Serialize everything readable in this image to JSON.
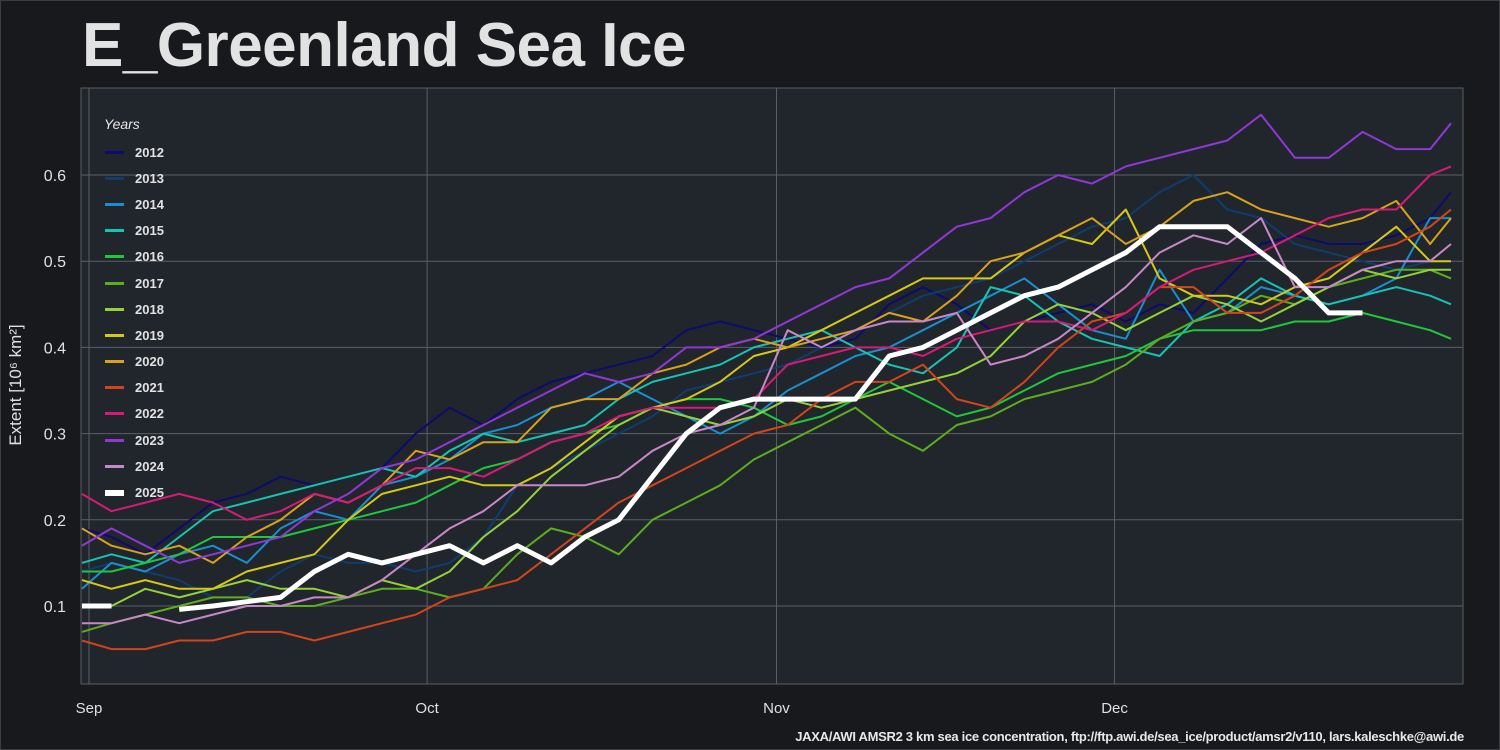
{
  "chart_data": {
    "type": "line",
    "title": "E_Greenland Sea Ice",
    "xlabel": "",
    "ylabel": "Extent [10⁶ km²]",
    "ylim": [
      0.01,
      0.7
    ],
    "xlim_days_from_sep1": [
      -0.7,
      122
    ],
    "grid": true,
    "legend": {
      "title": "Years",
      "placement": "top-left"
    },
    "xticks": [
      {
        "day": 0,
        "label": "Sep"
      },
      {
        "day": 30,
        "label": "Oct"
      },
      {
        "day": 61,
        "label": "Nov"
      },
      {
        "day": 91,
        "label": "Dec"
      }
    ],
    "yticks": [
      {
        "value": 0.1,
        "label": "0.1"
      },
      {
        "value": 0.2,
        "label": "0.2"
      },
      {
        "value": 0.3,
        "label": "0.3"
      },
      {
        "value": 0.4,
        "label": "0.4"
      },
      {
        "value": 0.5,
        "label": "0.5"
      },
      {
        "value": 0.6,
        "label": "0.6"
      }
    ],
    "x_days_from_sep1": [
      -1,
      2,
      5,
      8,
      11,
      14,
      17,
      20,
      23,
      26,
      29,
      32,
      35,
      38,
      41,
      44,
      47,
      50,
      53,
      56,
      59,
      62,
      65,
      68,
      71,
      74,
      77,
      80,
      83,
      86,
      89,
      92,
      95,
      98,
      101,
      104,
      107,
      110,
      113,
      116,
      119,
      121
    ],
    "series": [
      {
        "name": "2012",
        "color": "#0c0c6e",
        "values": [
          0.19,
          0.18,
          0.16,
          0.19,
          0.22,
          0.23,
          0.25,
          0.24,
          0.25,
          0.26,
          0.3,
          0.33,
          0.31,
          0.34,
          0.36,
          0.37,
          0.38,
          0.39,
          0.42,
          0.43,
          0.42,
          0.41,
          0.4,
          0.41,
          0.45,
          0.47,
          0.45,
          0.42,
          0.43,
          0.44,
          0.45,
          0.43,
          0.45,
          0.44,
          0.48,
          0.52,
          0.53,
          0.52,
          0.52,
          0.53,
          0.55,
          0.58
        ]
      },
      {
        "name": "2013",
        "color": "#0f3d6e",
        "values": [
          0.14,
          0.15,
          0.14,
          0.13,
          0.11,
          0.11,
          0.14,
          0.16,
          0.15,
          0.15,
          0.14,
          0.15,
          0.18,
          0.24,
          0.26,
          0.28,
          0.3,
          0.32,
          0.35,
          0.36,
          0.37,
          0.38,
          0.4,
          0.42,
          0.44,
          0.46,
          0.47,
          0.48,
          0.5,
          0.52,
          0.54,
          0.55,
          0.58,
          0.6,
          0.56,
          0.55,
          0.52,
          0.51,
          0.5,
          0.49,
          0.5,
          0.5
        ]
      },
      {
        "name": "2014",
        "color": "#1a8fd0",
        "values": [
          0.12,
          0.15,
          0.14,
          0.16,
          0.17,
          0.15,
          0.19,
          0.21,
          0.2,
          0.24,
          0.25,
          0.27,
          0.3,
          0.31,
          0.33,
          0.34,
          0.36,
          0.34,
          0.32,
          0.3,
          0.32,
          0.35,
          0.37,
          0.39,
          0.4,
          0.42,
          0.44,
          0.46,
          0.48,
          0.45,
          0.42,
          0.41,
          0.49,
          0.43,
          0.44,
          0.47,
          0.46,
          0.45,
          0.46,
          0.48,
          0.55,
          0.55
        ]
      },
      {
        "name": "2015",
        "color": "#17c3b2",
        "values": [
          0.15,
          0.16,
          0.15,
          0.18,
          0.21,
          0.22,
          0.23,
          0.24,
          0.25,
          0.26,
          0.25,
          0.28,
          0.3,
          0.29,
          0.3,
          0.31,
          0.34,
          0.36,
          0.37,
          0.38,
          0.4,
          0.41,
          0.42,
          0.4,
          0.38,
          0.37,
          0.4,
          0.47,
          0.46,
          0.43,
          0.41,
          0.4,
          0.39,
          0.43,
          0.45,
          0.48,
          0.46,
          0.45,
          0.46,
          0.47,
          0.46,
          0.45
        ]
      },
      {
        "name": "2016",
        "color": "#1ec83a",
        "values": [
          0.14,
          0.14,
          0.15,
          0.16,
          0.18,
          0.18,
          0.18,
          0.19,
          0.2,
          0.21,
          0.22,
          0.24,
          0.26,
          0.27,
          0.29,
          0.3,
          0.31,
          0.33,
          0.34,
          0.34,
          0.33,
          0.31,
          0.32,
          0.34,
          0.36,
          0.34,
          0.32,
          0.33,
          0.35,
          0.37,
          0.38,
          0.39,
          0.41,
          0.42,
          0.42,
          0.42,
          0.43,
          0.43,
          0.44,
          0.43,
          0.42,
          0.41
        ]
      },
      {
        "name": "2017",
        "color": "#5cae1c",
        "values": [
          0.07,
          0.08,
          0.09,
          0.1,
          0.11,
          0.11,
          0.1,
          0.1,
          0.11,
          0.12,
          0.12,
          0.11,
          0.12,
          0.16,
          0.19,
          0.18,
          0.16,
          0.2,
          0.22,
          0.24,
          0.27,
          0.29,
          0.31,
          0.33,
          0.3,
          0.28,
          0.31,
          0.32,
          0.34,
          0.35,
          0.36,
          0.38,
          0.41,
          0.43,
          0.44,
          0.46,
          0.45,
          0.47,
          0.48,
          0.49,
          0.49,
          0.48
        ]
      },
      {
        "name": "2018",
        "color": "#94d23a",
        "values": [
          0.1,
          0.1,
          0.12,
          0.11,
          0.12,
          0.13,
          0.12,
          0.12,
          0.11,
          0.13,
          0.12,
          0.14,
          0.18,
          0.21,
          0.25,
          0.28,
          0.31,
          0.33,
          0.32,
          0.31,
          0.32,
          0.34,
          0.33,
          0.34,
          0.35,
          0.36,
          0.37,
          0.39,
          0.43,
          0.45,
          0.44,
          0.42,
          0.44,
          0.46,
          0.45,
          0.43,
          0.45,
          0.47,
          0.49,
          0.48,
          0.49,
          0.49
        ]
      },
      {
        "name": "2019",
        "color": "#d6c916",
        "values": [
          0.13,
          0.12,
          0.13,
          0.12,
          0.12,
          0.14,
          0.15,
          0.16,
          0.2,
          0.23,
          0.24,
          0.25,
          0.24,
          0.24,
          0.26,
          0.29,
          0.32,
          0.33,
          0.34,
          0.36,
          0.39,
          0.4,
          0.42,
          0.44,
          0.46,
          0.48,
          0.48,
          0.48,
          0.51,
          0.53,
          0.52,
          0.56,
          0.48,
          0.46,
          0.46,
          0.45,
          0.47,
          0.48,
          0.51,
          0.54,
          0.5,
          0.5
        ]
      },
      {
        "name": "2020",
        "color": "#d9a21c",
        "values": [
          0.19,
          0.17,
          0.16,
          0.17,
          0.15,
          0.18,
          0.2,
          0.23,
          0.22,
          0.24,
          0.28,
          0.27,
          0.29,
          0.29,
          0.33,
          0.34,
          0.34,
          0.37,
          0.38,
          0.4,
          0.41,
          0.4,
          0.41,
          0.42,
          0.44,
          0.43,
          0.46,
          0.5,
          0.51,
          0.53,
          0.55,
          0.52,
          0.54,
          0.57,
          0.58,
          0.56,
          0.55,
          0.54,
          0.55,
          0.57,
          0.52,
          0.55
        ]
      },
      {
        "name": "2021",
        "color": "#d4441a",
        "values": [
          0.06,
          0.05,
          0.05,
          0.06,
          0.06,
          0.07,
          0.07,
          0.06,
          0.07,
          0.08,
          0.09,
          0.11,
          0.12,
          0.13,
          0.16,
          0.19,
          0.22,
          0.24,
          0.26,
          0.28,
          0.3,
          0.31,
          0.34,
          0.36,
          0.36,
          0.38,
          0.34,
          0.33,
          0.36,
          0.4,
          0.43,
          0.44,
          0.47,
          0.47,
          0.44,
          0.44,
          0.46,
          0.49,
          0.51,
          0.52,
          0.54,
          0.56
        ]
      },
      {
        "name": "2022",
        "color": "#d61a78",
        "values": [
          0.23,
          0.21,
          0.22,
          0.23,
          0.22,
          0.2,
          0.21,
          0.23,
          0.22,
          0.24,
          0.26,
          0.26,
          0.25,
          0.27,
          0.29,
          0.3,
          0.32,
          0.33,
          0.33,
          0.33,
          0.34,
          0.38,
          0.39,
          0.4,
          0.4,
          0.39,
          0.41,
          0.42,
          0.43,
          0.43,
          0.42,
          0.44,
          0.47,
          0.49,
          0.5,
          0.51,
          0.53,
          0.55,
          0.56,
          0.56,
          0.6,
          0.61
        ]
      },
      {
        "name": "2023",
        "color": "#9038d6",
        "values": [
          0.17,
          0.19,
          0.17,
          0.15,
          0.16,
          0.17,
          0.18,
          0.21,
          0.23,
          0.26,
          0.27,
          0.29,
          0.31,
          0.33,
          0.35,
          0.37,
          0.36,
          0.37,
          0.4,
          0.4,
          0.41,
          0.43,
          0.45,
          0.47,
          0.48,
          0.51,
          0.54,
          0.55,
          0.58,
          0.6,
          0.59,
          0.61,
          0.62,
          0.63,
          0.64,
          0.67,
          0.62,
          0.62,
          0.65,
          0.63,
          0.63,
          0.66
        ]
      },
      {
        "name": "2024",
        "color": "#c888c8",
        "values": [
          0.08,
          0.08,
          0.09,
          0.08,
          0.09,
          0.1,
          0.1,
          0.11,
          0.11,
          0.13,
          0.16,
          0.19,
          0.21,
          0.24,
          0.24,
          0.24,
          0.25,
          0.28,
          0.3,
          0.31,
          0.33,
          0.42,
          0.4,
          0.42,
          0.43,
          0.43,
          0.44,
          0.38,
          0.39,
          0.41,
          0.44,
          0.47,
          0.51,
          0.53,
          0.52,
          0.55,
          0.47,
          0.47,
          0.49,
          0.5,
          0.5,
          0.52
        ]
      },
      {
        "name": "2025",
        "color": "#ffffff",
        "values": [
          0.1,
          0.1,
          null,
          0.096,
          0.1,
          0.105,
          0.11,
          0.14,
          0.16,
          0.15,
          0.16,
          0.17,
          0.15,
          0.17,
          0.15,
          0.18,
          0.2,
          0.25,
          0.3,
          0.33,
          0.34,
          0.34,
          0.34,
          0.34,
          0.39,
          0.4,
          0.42,
          0.44,
          0.46,
          0.47,
          0.49,
          0.51,
          0.54,
          0.54,
          0.54,
          0.51,
          0.48,
          0.44,
          0.44,
          null,
          null,
          null
        ]
      }
    ]
  },
  "credit": "JAXA/AWI AMSR2 3 km sea ice concentration, ftp://ftp.awi.de/sea_ice/product/amsr2/v110, lars.kaleschke@awi.de"
}
